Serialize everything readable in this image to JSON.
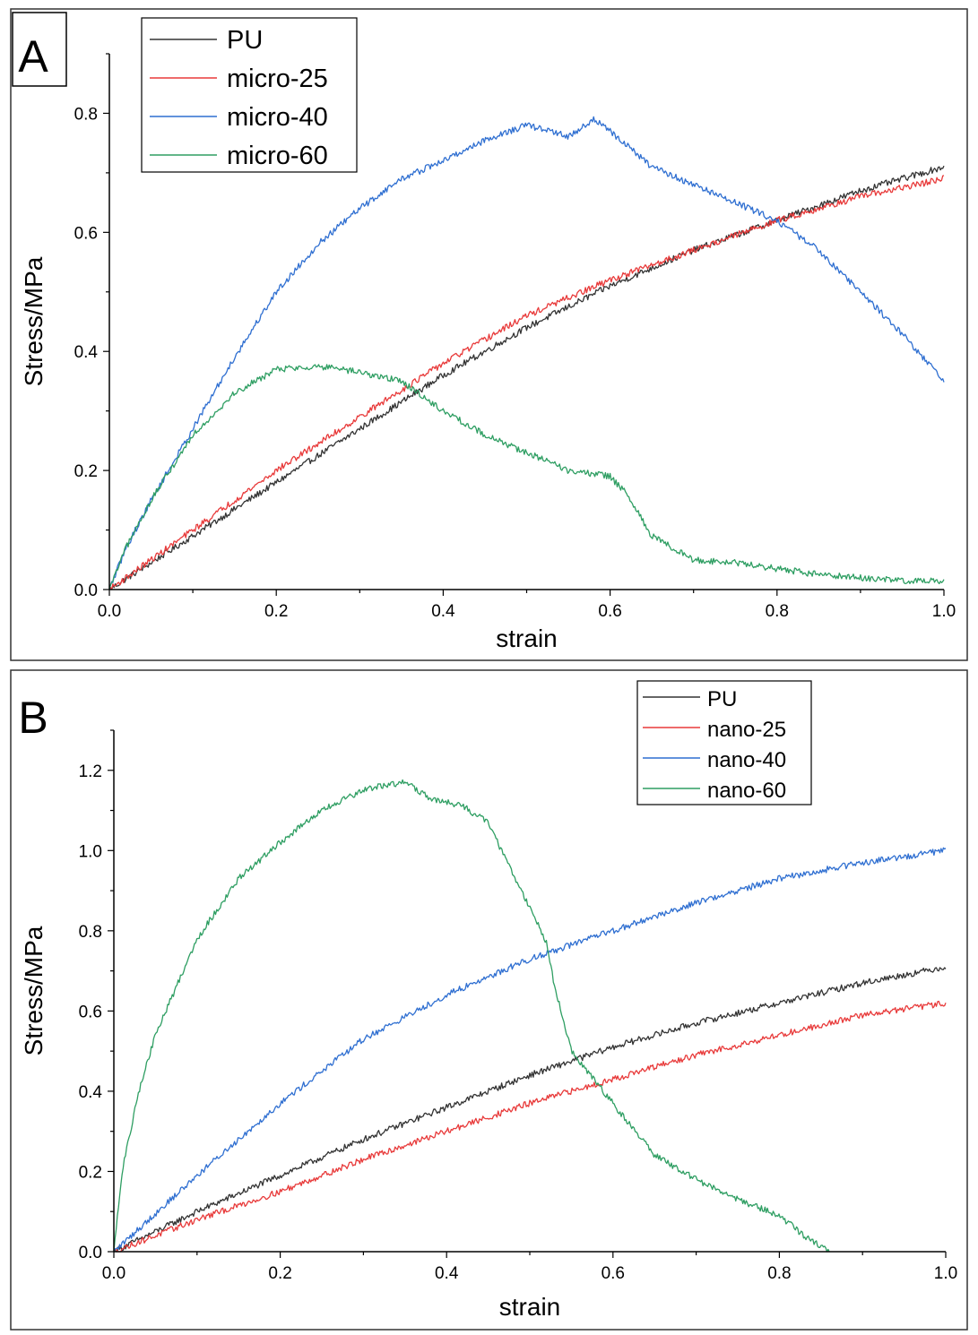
{
  "chart_data": [
    {
      "panel_label": "A",
      "type": "line",
      "title": "",
      "xlabel": "strain",
      "ylabel": "Stress/MPa",
      "xlim": [
        0.0,
        1.0
      ],
      "ylim": [
        0.0,
        0.9
      ],
      "xticks": [
        "0.0",
        "0.2",
        "0.4",
        "0.6",
        "0.8",
        "1.0"
      ],
      "xtick_values": [
        0.0,
        0.2,
        0.4,
        0.6,
        0.8,
        1.0
      ],
      "yticks": [
        "0.0",
        "0.2",
        "0.4",
        "0.6",
        "0.8"
      ],
      "ytick_values": [
        0.0,
        0.2,
        0.4,
        0.6,
        0.8
      ],
      "grid": false,
      "legend_position": "top-left",
      "series": [
        {
          "name": "PU",
          "color": "#333333",
          "x": [
            0.0,
            0.1,
            0.2,
            0.3,
            0.4,
            0.5,
            0.6,
            0.7,
            0.8,
            0.9,
            1.0
          ],
          "y": [
            0.0,
            0.09,
            0.18,
            0.27,
            0.36,
            0.44,
            0.51,
            0.57,
            0.62,
            0.67,
            0.71
          ]
        },
        {
          "name": "micro-25",
          "color": "#e83a3a",
          "x": [
            0.0,
            0.1,
            0.2,
            0.3,
            0.4,
            0.5,
            0.6,
            0.7,
            0.8,
            0.9,
            1.0
          ],
          "y": [
            0.0,
            0.1,
            0.2,
            0.29,
            0.38,
            0.46,
            0.52,
            0.57,
            0.62,
            0.66,
            0.69
          ]
        },
        {
          "name": "micro-40",
          "color": "#2f6fd1",
          "x": [
            0.0,
            0.02,
            0.05,
            0.1,
            0.15,
            0.2,
            0.25,
            0.3,
            0.35,
            0.4,
            0.45,
            0.5,
            0.53,
            0.55,
            0.58,
            0.6,
            0.65,
            0.7,
            0.75,
            0.8,
            0.85,
            0.9,
            0.95,
            1.0
          ],
          "y": [
            0.0,
            0.07,
            0.15,
            0.27,
            0.39,
            0.5,
            0.58,
            0.64,
            0.69,
            0.72,
            0.755,
            0.78,
            0.77,
            0.76,
            0.79,
            0.77,
            0.71,
            0.68,
            0.65,
            0.62,
            0.57,
            0.5,
            0.43,
            0.35
          ]
        },
        {
          "name": "micro-60",
          "color": "#2e9e62",
          "x": [
            0.0,
            0.02,
            0.05,
            0.1,
            0.15,
            0.2,
            0.25,
            0.3,
            0.35,
            0.4,
            0.45,
            0.5,
            0.55,
            0.6,
            0.62,
            0.65,
            0.7,
            0.75,
            0.8,
            0.85,
            0.9,
            0.95,
            1.0
          ],
          "y": [
            0.0,
            0.07,
            0.15,
            0.26,
            0.33,
            0.37,
            0.375,
            0.365,
            0.35,
            0.3,
            0.26,
            0.23,
            0.2,
            0.19,
            0.16,
            0.09,
            0.05,
            0.045,
            0.035,
            0.025,
            0.02,
            0.015,
            0.015
          ]
        }
      ]
    },
    {
      "panel_label": "B",
      "type": "line",
      "title": "",
      "xlabel": "strain",
      "ylabel": "Stress/MPa",
      "xlim": [
        0.0,
        1.0
      ],
      "ylim": [
        0.0,
        1.3
      ],
      "xticks": [
        "0.0",
        "0.2",
        "0.4",
        "0.6",
        "0.8",
        "1.0"
      ],
      "xtick_values": [
        0.0,
        0.2,
        0.4,
        0.6,
        0.8,
        1.0
      ],
      "yticks": [
        "0.0",
        "0.2",
        "0.4",
        "0.6",
        "0.8",
        "1.0",
        "1.2"
      ],
      "ytick_values": [
        0.0,
        0.2,
        0.4,
        0.6,
        0.8,
        1.0,
        1.2
      ],
      "grid": false,
      "legend_position": "top-right",
      "series": [
        {
          "name": "PU",
          "color": "#333333",
          "x": [
            0.0,
            0.1,
            0.2,
            0.3,
            0.4,
            0.5,
            0.6,
            0.7,
            0.8,
            0.9,
            1.0
          ],
          "y": [
            0.0,
            0.1,
            0.19,
            0.28,
            0.36,
            0.44,
            0.51,
            0.57,
            0.62,
            0.67,
            0.71
          ]
        },
        {
          "name": "nano-25",
          "color": "#e83a3a",
          "x": [
            0.0,
            0.1,
            0.2,
            0.3,
            0.4,
            0.5,
            0.6,
            0.7,
            0.8,
            0.9,
            1.0
          ],
          "y": [
            0.0,
            0.08,
            0.15,
            0.23,
            0.3,
            0.37,
            0.43,
            0.49,
            0.54,
            0.59,
            0.62
          ]
        },
        {
          "name": "nano-40",
          "color": "#2f6fd1",
          "x": [
            0.0,
            0.1,
            0.2,
            0.3,
            0.4,
            0.5,
            0.6,
            0.7,
            0.8,
            0.9,
            1.0
          ],
          "y": [
            0.0,
            0.19,
            0.37,
            0.53,
            0.64,
            0.73,
            0.8,
            0.87,
            0.93,
            0.97,
            1.0
          ]
        },
        {
          "name": "nano-60",
          "color": "#2e9e62",
          "x": [
            0.0,
            0.01,
            0.03,
            0.05,
            0.1,
            0.15,
            0.2,
            0.25,
            0.3,
            0.33,
            0.35,
            0.38,
            0.42,
            0.45,
            0.48,
            0.5,
            0.52,
            0.53,
            0.55,
            0.6,
            0.65,
            0.7,
            0.75,
            0.8,
            0.83,
            0.86
          ],
          "y": [
            0.0,
            0.2,
            0.4,
            0.54,
            0.78,
            0.93,
            1.02,
            1.1,
            1.15,
            1.165,
            1.17,
            1.13,
            1.11,
            1.07,
            0.94,
            0.86,
            0.77,
            0.66,
            0.5,
            0.37,
            0.24,
            0.18,
            0.13,
            0.09,
            0.04,
            0.0
          ]
        }
      ]
    }
  ]
}
